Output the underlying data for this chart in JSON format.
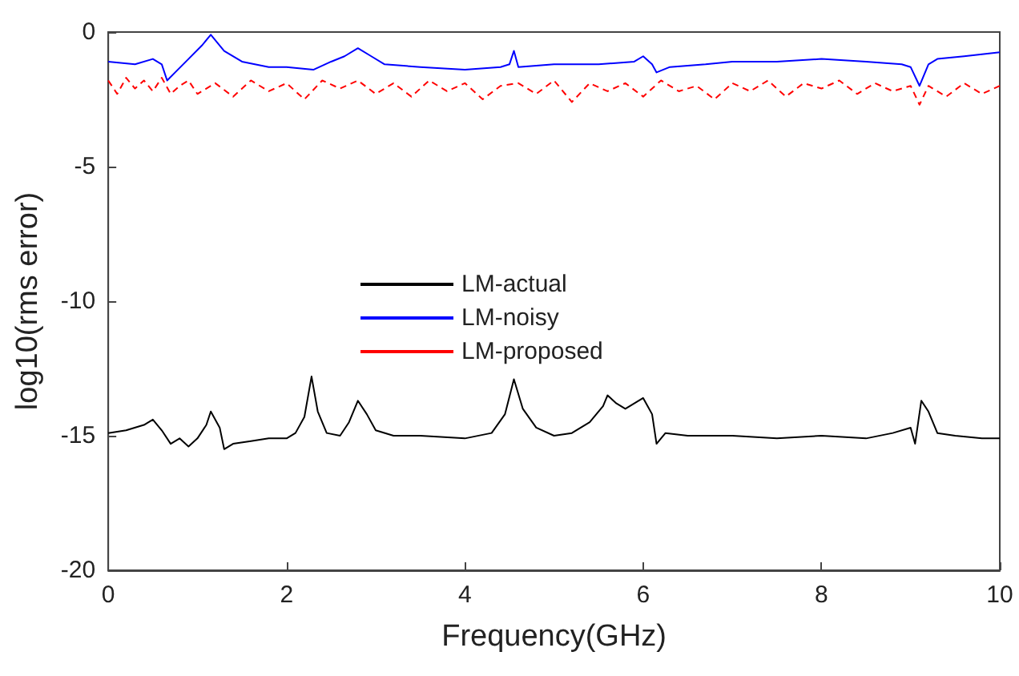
{
  "chart_data": {
    "type": "line",
    "xlabel": "Frequency(GHz)",
    "ylabel": "log10(rms error)",
    "xlim": [
      0,
      10
    ],
    "ylim": [
      -20,
      0
    ],
    "xticks": [
      0,
      2,
      4,
      6,
      8,
      10
    ],
    "yticks": [
      -20,
      -15,
      -10,
      -5,
      0
    ],
    "grid": false,
    "legend": "center",
    "marker": "none",
    "series": [
      {
        "name": "LM-actual",
        "color": "#000000",
        "line_style": "solid",
        "x": [
          0,
          0.2,
          0.4,
          0.5,
          0.6,
          0.7,
          0.8,
          0.9,
          1.0,
          1.1,
          1.15,
          1.25,
          1.3,
          1.4,
          1.6,
          1.8,
          2.0,
          2.1,
          2.2,
          2.28,
          2.35,
          2.45,
          2.6,
          2.7,
          2.8,
          2.9,
          3.0,
          3.2,
          3.5,
          4.0,
          4.3,
          4.45,
          4.55,
          4.65,
          4.8,
          5.0,
          5.2,
          5.4,
          5.55,
          5.6,
          5.7,
          5.8,
          5.9,
          6.0,
          6.1,
          6.15,
          6.25,
          6.5,
          7.0,
          7.5,
          8.0,
          8.5,
          8.8,
          9.0,
          9.05,
          9.12,
          9.2,
          9.3,
          9.5,
          9.8,
          10
        ],
        "values": [
          -14.9,
          -14.8,
          -14.6,
          -14.4,
          -14.8,
          -15.3,
          -15.1,
          -15.4,
          -15.1,
          -14.6,
          -14.1,
          -14.7,
          -15.5,
          -15.3,
          -15.2,
          -15.1,
          -15.1,
          -14.9,
          -14.3,
          -12.8,
          -14.1,
          -14.9,
          -15.0,
          -14.5,
          -13.7,
          -14.2,
          -14.8,
          -15.0,
          -15.0,
          -15.1,
          -14.9,
          -14.2,
          -12.9,
          -14.0,
          -14.7,
          -15.0,
          -14.9,
          -14.5,
          -13.9,
          -13.5,
          -13.8,
          -14.0,
          -13.8,
          -13.6,
          -14.2,
          -15.3,
          -14.9,
          -15.0,
          -15.0,
          -15.1,
          -15.0,
          -15.1,
          -14.9,
          -14.7,
          -15.3,
          -13.7,
          -14.1,
          -14.9,
          -15.0,
          -15.1,
          -15.1
        ]
      },
      {
        "name": "LM-noisy",
        "color": "#0000ff",
        "line_style": "solid",
        "x": [
          0,
          0.3,
          0.5,
          0.6,
          0.66,
          0.75,
          0.9,
          1.05,
          1.15,
          1.3,
          1.5,
          1.8,
          2.0,
          2.3,
          2.5,
          2.65,
          2.8,
          2.95,
          3.1,
          3.5,
          4.0,
          4.4,
          4.5,
          4.55,
          4.6,
          5.0,
          5.5,
          5.9,
          6.0,
          6.1,
          6.15,
          6.3,
          6.7,
          7.0,
          7.5,
          8.0,
          8.5,
          8.9,
          9.0,
          9.1,
          9.2,
          9.3,
          9.6,
          10
        ],
        "values": [
          -1.1,
          -1.2,
          -1.0,
          -1.2,
          -1.8,
          -1.5,
          -1.0,
          -0.5,
          -0.1,
          -0.7,
          -1.1,
          -1.3,
          -1.3,
          -1.4,
          -1.1,
          -0.9,
          -0.6,
          -0.9,
          -1.2,
          -1.3,
          -1.4,
          -1.3,
          -1.2,
          -0.7,
          -1.3,
          -1.2,
          -1.2,
          -1.1,
          -0.9,
          -1.2,
          -1.5,
          -1.3,
          -1.2,
          -1.1,
          -1.1,
          -1.0,
          -1.1,
          -1.2,
          -1.3,
          -2.0,
          -1.2,
          -1.0,
          -0.9,
          -0.75
        ]
      },
      {
        "name": "LM-proposed",
        "color": "#ff0000",
        "line_style": "dashed",
        "x": [
          0,
          0.1,
          0.2,
          0.3,
          0.4,
          0.5,
          0.6,
          0.7,
          0.8,
          0.9,
          1.0,
          1.2,
          1.4,
          1.6,
          1.8,
          2.0,
          2.2,
          2.4,
          2.6,
          2.8,
          3.0,
          3.2,
          3.4,
          3.6,
          3.8,
          4.0,
          4.2,
          4.4,
          4.6,
          4.8,
          5.0,
          5.2,
          5.4,
          5.6,
          5.8,
          6.0,
          6.2,
          6.4,
          6.6,
          6.8,
          7.0,
          7.2,
          7.4,
          7.6,
          7.8,
          8.0,
          8.2,
          8.4,
          8.6,
          8.8,
          9.0,
          9.1,
          9.2,
          9.4,
          9.6,
          9.8,
          10
        ],
        "values": [
          -1.8,
          -2.3,
          -1.7,
          -2.1,
          -1.8,
          -2.2,
          -1.7,
          -2.3,
          -2.0,
          -1.8,
          -2.3,
          -1.9,
          -2.4,
          -1.8,
          -2.2,
          -1.9,
          -2.5,
          -1.8,
          -2.1,
          -1.8,
          -2.3,
          -1.9,
          -2.4,
          -1.8,
          -2.2,
          -1.9,
          -2.5,
          -2.0,
          -1.9,
          -2.3,
          -1.8,
          -2.6,
          -1.9,
          -2.2,
          -1.9,
          -2.4,
          -1.8,
          -2.2,
          -2.0,
          -2.5,
          -1.9,
          -2.2,
          -1.8,
          -2.4,
          -1.9,
          -2.1,
          -1.8,
          -2.3,
          -1.9,
          -2.2,
          -2.0,
          -2.7,
          -2.0,
          -2.4,
          -1.9,
          -2.3,
          -2.0
        ]
      }
    ]
  }
}
